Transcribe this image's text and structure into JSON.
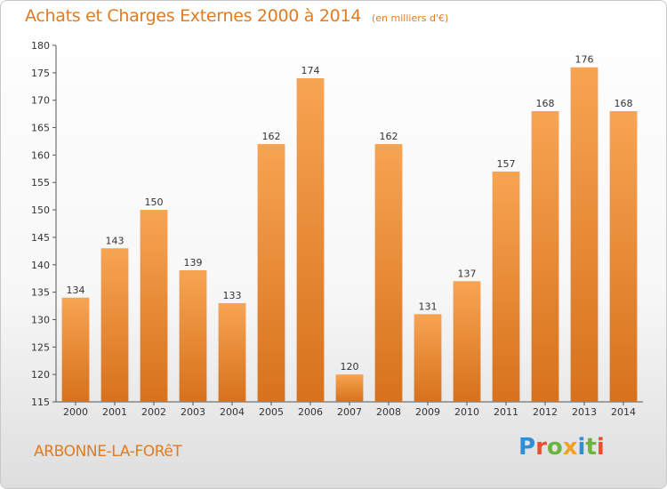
{
  "header": {
    "title": "Achats et Charges Externes 2000 à 2014",
    "subtitle": "(en milliers d'€)"
  },
  "footer": {
    "city": "ARBONNE-LA-FORêT",
    "logo_letters": [
      {
        "ch": "P",
        "color": "#2f8fd6"
      },
      {
        "ch": "r",
        "color": "#e8522f"
      },
      {
        "ch": "o",
        "color": "#6cb33f"
      },
      {
        "ch": "x",
        "color": "#f2a11e"
      },
      {
        "ch": "i",
        "color": "#2f8fd6"
      },
      {
        "ch": "t",
        "color": "#6cb33f"
      },
      {
        "ch": "i",
        "color": "#e8522f"
      }
    ]
  },
  "chart_data": {
    "type": "bar",
    "categories": [
      "2000",
      "2001",
      "2002",
      "2003",
      "2004",
      "2005",
      "2006",
      "2007",
      "2008",
      "2009",
      "2010",
      "2011",
      "2012",
      "2013",
      "2014"
    ],
    "values": [
      134,
      143,
      150,
      139,
      133,
      162,
      174,
      120,
      162,
      131,
      137,
      157,
      168,
      176,
      168
    ],
    "title": "Achats et Charges Externes 2000 à 2014",
    "xlabel": "",
    "ylabel": "",
    "ylim": [
      115,
      180
    ],
    "yticks": [
      115,
      120,
      125,
      130,
      135,
      140,
      145,
      150,
      155,
      160,
      165,
      170,
      175,
      180
    ],
    "grid": false,
    "bar_color_top": "#f7a452",
    "bar_color_bottom": "#d8711c"
  }
}
